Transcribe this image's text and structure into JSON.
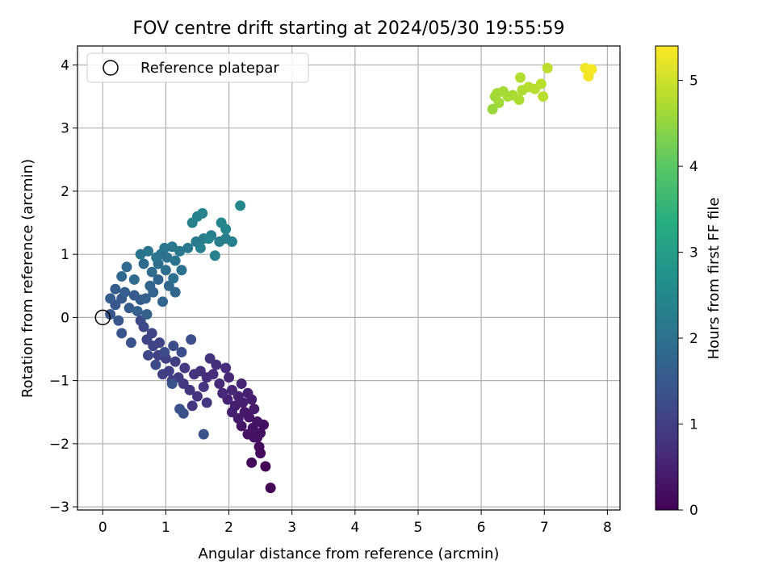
{
  "chart_data": {
    "type": "scatter",
    "title": "FOV centre drift starting at 2024/05/30 19:55:59",
    "xlabel": "Angular distance from reference (arcmin)",
    "ylabel": "Rotation from reference (arcmin)",
    "xlim": [
      -0.4,
      8.2
    ],
    "ylim": [
      -3.05,
      4.3
    ],
    "xticks": [
      0,
      1,
      2,
      3,
      4,
      5,
      6,
      7,
      8
    ],
    "yticks": [
      -3,
      -2,
      -1,
      0,
      1,
      2,
      3,
      4
    ],
    "xtick_labels": [
      "0",
      "1",
      "2",
      "3",
      "4",
      "5",
      "6",
      "7",
      "8"
    ],
    "ytick_labels": [
      "−3",
      "−2",
      "−1",
      "0",
      "1",
      "2",
      "3",
      "4"
    ],
    "grid": true,
    "legend": {
      "placement": "top-left",
      "entries": [
        "Reference platepar"
      ]
    },
    "reference_point": {
      "x": 0,
      "y": 0
    },
    "colorbar": {
      "label": "Hours from first FF file",
      "colormap": "viridis",
      "range": [
        0,
        5.4
      ],
      "ticks": [
        0,
        1,
        2,
        3,
        4,
        5
      ],
      "tick_labels": [
        "0",
        "1",
        "2",
        "3",
        "4",
        "5"
      ]
    },
    "points": [
      [
        2.66,
        -2.7,
        0.03
      ],
      [
        2.58,
        -2.36,
        0.06
      ],
      [
        2.36,
        -2.3,
        0.1
      ],
      [
        2.5,
        -2.15,
        0.12
      ],
      [
        2.48,
        -2.05,
        0.15
      ],
      [
        2.45,
        -1.9,
        0.18
      ],
      [
        2.5,
        -1.83,
        0.2
      ],
      [
        2.55,
        -1.7,
        0.22
      ],
      [
        2.4,
        -1.9,
        0.24
      ],
      [
        2.3,
        -1.85,
        0.26
      ],
      [
        2.38,
        -1.75,
        0.28
      ],
      [
        2.45,
        -1.65,
        0.3
      ],
      [
        2.2,
        -1.72,
        0.32
      ],
      [
        2.32,
        -1.58,
        0.34
      ],
      [
        2.25,
        -1.5,
        0.36
      ],
      [
        2.15,
        -1.6,
        0.38
      ],
      [
        2.4,
        -1.45,
        0.4
      ],
      [
        2.36,
        -1.3,
        0.42
      ],
      [
        2.1,
        -1.4,
        0.44
      ],
      [
        2.22,
        -1.35,
        0.46
      ],
      [
        2.05,
        -1.5,
        0.48
      ],
      [
        2.3,
        -1.2,
        0.5
      ],
      [
        2.15,
        -1.25,
        0.52
      ],
      [
        1.98,
        -1.3,
        0.54
      ],
      [
        2.2,
        -1.05,
        0.56
      ],
      [
        2.05,
        -1.15,
        0.58
      ],
      [
        1.9,
        -1.2,
        0.6
      ],
      [
        2.0,
        -0.95,
        0.62
      ],
      [
        1.85,
        -1.05,
        0.64
      ],
      [
        1.75,
        -0.9,
        0.66
      ],
      [
        1.95,
        -0.8,
        0.68
      ],
      [
        1.65,
        -0.95,
        0.7
      ],
      [
        1.8,
        -0.75,
        0.72
      ],
      [
        1.55,
        -0.85,
        0.74
      ],
      [
        1.7,
        -0.65,
        0.76
      ],
      [
        1.45,
        -0.9,
        0.78
      ],
      [
        1.6,
        -1.1,
        0.8
      ],
      [
        1.5,
        -1.25,
        0.82
      ],
      [
        1.42,
        -1.4,
        0.84
      ],
      [
        1.65,
        -1.35,
        0.86
      ],
      [
        1.38,
        -1.15,
        0.88
      ],
      [
        1.28,
        -1.05,
        0.9
      ],
      [
        1.3,
        -0.8,
        0.92
      ],
      [
        1.2,
        -0.95,
        0.94
      ],
      [
        1.1,
        -1.0,
        0.96
      ],
      [
        1.15,
        -0.7,
        0.98
      ],
      [
        1.05,
        -0.85,
        1.0
      ],
      [
        0.95,
        -0.9,
        1.02
      ],
      [
        1.0,
        -0.65,
        1.04
      ],
      [
        0.88,
        -0.6,
        1.06
      ],
      [
        0.9,
        -0.4,
        1.08
      ],
      [
        0.8,
        -0.45,
        1.1
      ],
      [
        0.78,
        -0.25,
        1.12
      ],
      [
        0.7,
        -0.35,
        1.14
      ],
      [
        0.65,
        -0.15,
        1.16
      ],
      [
        0.6,
        -0.05,
        1.18
      ],
      [
        0.72,
        -0.6,
        1.2
      ],
      [
        0.84,
        -0.75,
        1.22
      ],
      [
        0.98,
        -0.55,
        1.24
      ],
      [
        1.12,
        -0.45,
        1.26
      ],
      [
        1.25,
        -0.55,
        1.28
      ],
      [
        1.4,
        -0.35,
        1.3
      ],
      [
        1.22,
        -1.45,
        1.32
      ],
      [
        1.28,
        -1.52,
        1.34
      ],
      [
        1.6,
        -1.85,
        1.36
      ],
      [
        1.1,
        -1.05,
        1.38
      ],
      [
        0.45,
        -0.4,
        1.4
      ],
      [
        0.3,
        -0.25,
        1.42
      ],
      [
        0.25,
        -0.05,
        1.44
      ],
      [
        0.12,
        0.05,
        1.46
      ],
      [
        0.2,
        0.2,
        1.48
      ],
      [
        0.3,
        0.3,
        1.5
      ],
      [
        0.42,
        0.15,
        1.52
      ],
      [
        0.5,
        0.35,
        1.54
      ],
      [
        0.6,
        0.28,
        1.56
      ],
      [
        0.12,
        0.3,
        1.58
      ],
      [
        0.2,
        0.45,
        1.6
      ],
      [
        0.35,
        0.4,
        1.62
      ],
      [
        0.55,
        0.1,
        1.64
      ],
      [
        0.7,
        0.05,
        1.66
      ],
      [
        0.68,
        0.3,
        1.68
      ],
      [
        0.8,
        0.4,
        1.7
      ],
      [
        0.95,
        0.25,
        1.72
      ],
      [
        0.75,
        0.5,
        1.74
      ],
      [
        0.88,
        0.6,
        1.76
      ],
      [
        1.05,
        0.5,
        1.78
      ],
      [
        1.15,
        0.4,
        1.8
      ],
      [
        0.3,
        0.65,
        1.82
      ],
      [
        0.38,
        0.8,
        1.84
      ],
      [
        0.5,
        0.6,
        1.86
      ],
      [
        0.65,
        0.85,
        1.88
      ],
      [
        0.78,
        0.72,
        1.9
      ],
      [
        0.88,
        0.85,
        1.92
      ],
      [
        1.0,
        0.75,
        1.94
      ],
      [
        1.12,
        0.62,
        1.96
      ],
      [
        1.25,
        0.75,
        1.98
      ],
      [
        0.92,
        1.0,
        2.0
      ],
      [
        1.02,
        0.95,
        2.02
      ],
      [
        1.15,
        0.9,
        2.04
      ],
      [
        0.6,
        1.0,
        2.06
      ],
      [
        0.72,
        1.05,
        2.08
      ],
      [
        0.85,
        0.95,
        2.1
      ],
      [
        0.98,
        1.1,
        2.12
      ],
      [
        1.1,
        1.12,
        2.14
      ],
      [
        1.22,
        1.05,
        2.16
      ],
      [
        1.35,
        1.1,
        2.18
      ],
      [
        1.48,
        1.2,
        2.2
      ],
      [
        1.6,
        1.25,
        2.22
      ],
      [
        1.72,
        1.3,
        2.24
      ],
      [
        1.85,
        1.2,
        2.26
      ],
      [
        1.95,
        1.25,
        2.28
      ],
      [
        2.05,
        1.2,
        2.3
      ],
      [
        1.78,
        0.98,
        2.32
      ],
      [
        1.55,
        1.1,
        2.34
      ],
      [
        1.42,
        1.5,
        2.36
      ],
      [
        1.5,
        1.6,
        2.38
      ],
      [
        1.58,
        1.65,
        2.4
      ],
      [
        1.68,
        1.25,
        2.42
      ],
      [
        1.88,
        1.5,
        2.44
      ],
      [
        1.95,
        1.4,
        2.46
      ],
      [
        2.18,
        1.77,
        2.5
      ]
    ],
    "upper_cluster": [
      [
        6.18,
        3.3,
        4.55
      ],
      [
        6.22,
        3.5,
        4.6
      ],
      [
        6.28,
        3.4,
        4.62
      ],
      [
        6.25,
        3.55,
        4.64
      ],
      [
        6.35,
        3.58,
        4.66
      ],
      [
        6.42,
        3.5,
        4.68
      ],
      [
        6.5,
        3.52,
        4.7
      ],
      [
        6.6,
        3.45,
        4.72
      ],
      [
        6.65,
        3.6,
        4.74
      ],
      [
        6.62,
        3.8,
        4.76
      ],
      [
        6.75,
        3.65,
        4.78
      ],
      [
        6.85,
        3.62,
        4.8
      ],
      [
        6.95,
        3.7,
        4.82
      ],
      [
        6.98,
        3.5,
        4.84
      ],
      [
        7.05,
        3.95,
        4.86
      ],
      [
        7.65,
        3.95,
        5.3
      ],
      [
        7.7,
        3.82,
        5.32
      ],
      [
        7.75,
        3.93,
        5.35
      ]
    ]
  }
}
